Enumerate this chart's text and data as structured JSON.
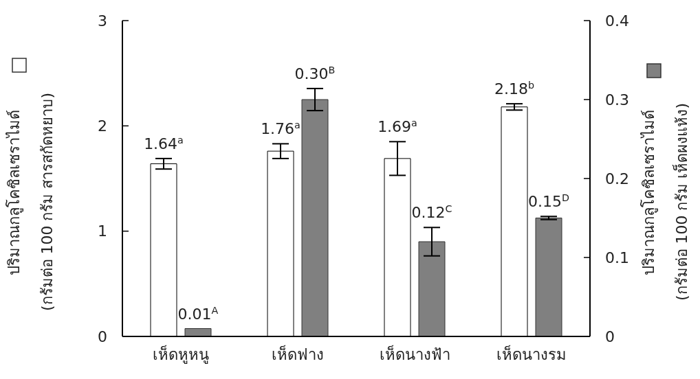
{
  "chart_data": {
    "type": "bar",
    "categories": [
      "เห็ดหูหนู",
      "เห็ดฟาง",
      "เห็ดนางฟ้า",
      "เห็ดนางรม"
    ],
    "ylabel": "ปริมาณกลูโคซิลเซราไมด์\n(กรัมต่อ 100 กรัม สารสกัดหยาบ)",
    "y2label": "ปริมาณกลูโคซิลเซราไมด์\n(กรัมต่อ 100 กรัม เห็ดผงแห้ง)",
    "series": [
      {
        "color": "#ffffff",
        "values": [
          1.64,
          1.76,
          1.69,
          2.18
        ],
        "errors": [
          0.05,
          0.07,
          0.16,
          0.03
        ],
        "value_labels": [
          "1.64$^{a}$",
          "1.76$^{a}$",
          "1.69$^{a}$",
          "2.18$^{b}$"
        ]
      },
      {
        "color": "#808080",
        "axis": "y2",
        "values": [
          0.01,
          0.3,
          0.12,
          0.15
        ],
        "errors": [
          null,
          0.014,
          0.018,
          0.002
        ],
        "value_labels": [
          "0.01$^{A}$",
          "0.30$^{B}$",
          "0.12$^{C}$",
          "0.15$^{D}$"
        ]
      }
    ],
    "ylim": [
      0,
      3
    ],
    "yticks": [
      0,
      1,
      2,
      3
    ],
    "y2lim": [
      0,
      0.4
    ],
    "y2ticks": [
      0,
      0.1,
      0.2,
      0.3,
      0.4
    ]
  }
}
